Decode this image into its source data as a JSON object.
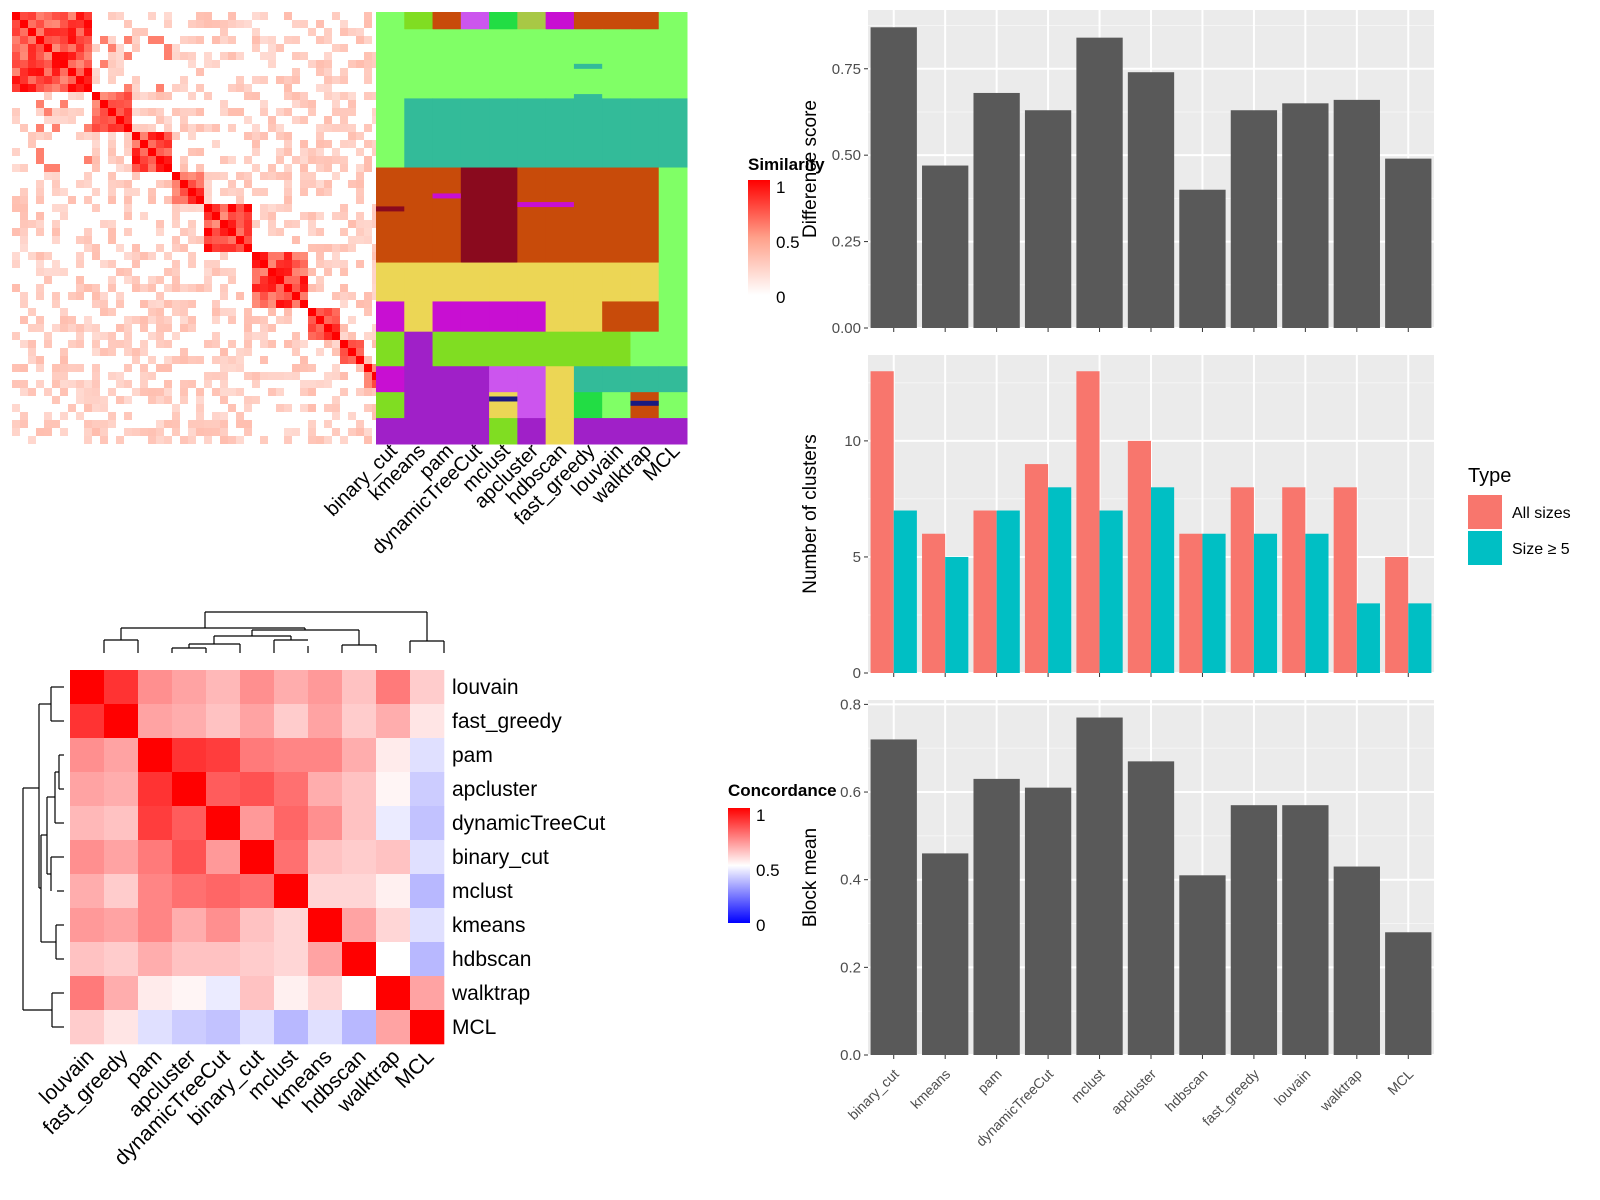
{
  "chart_data": [
    {
      "type": "heatmap",
      "id": "similarity-heatmap",
      "legend": {
        "title": "Similarity",
        "ticks": [
          "1",
          "0.5",
          "0"
        ]
      },
      "colors": {
        "high": "#ff0000",
        "low": "#ffffff"
      }
    },
    {
      "type": "heatmap",
      "id": "cluster-membership",
      "columns": [
        "binary_cut",
        "kmeans",
        "pam",
        "dynamicTreeCut",
        "mclust",
        "apcluster",
        "hdbscan",
        "fast_greedy",
        "louvain",
        "walktrap",
        "MCL"
      ]
    },
    {
      "type": "heatmap",
      "id": "concordance-heatmap",
      "rows": [
        "louvain",
        "fast_greedy",
        "pam",
        "apcluster",
        "dynamicTreeCut",
        "binary_cut",
        "mclust",
        "kmeans",
        "hdbscan",
        "walktrap",
        "MCL"
      ],
      "columns": [
        "louvain",
        "fast_greedy",
        "pam",
        "apcluster",
        "dynamicTreeCut",
        "binary_cut",
        "mclust",
        "kmeans",
        "hdbscan",
        "walktrap",
        "MCL"
      ],
      "values": [
        [
          1.0,
          0.9,
          0.72,
          0.68,
          0.64,
          0.72,
          0.66,
          0.7,
          0.62,
          0.76,
          0.6
        ],
        [
          0.9,
          1.0,
          0.68,
          0.66,
          0.62,
          0.68,
          0.6,
          0.68,
          0.6,
          0.66,
          0.55
        ],
        [
          0.72,
          0.68,
          1.0,
          0.9,
          0.88,
          0.76,
          0.74,
          0.74,
          0.66,
          0.54,
          0.44
        ],
        [
          0.68,
          0.66,
          0.9,
          1.0,
          0.82,
          0.84,
          0.78,
          0.66,
          0.62,
          0.52,
          0.4
        ],
        [
          0.64,
          0.62,
          0.88,
          0.82,
          1.0,
          0.7,
          0.8,
          0.72,
          0.62,
          0.46,
          0.38
        ],
        [
          0.72,
          0.68,
          0.76,
          0.84,
          0.7,
          1.0,
          0.78,
          0.62,
          0.6,
          0.62,
          0.44
        ],
        [
          0.66,
          0.6,
          0.74,
          0.78,
          0.8,
          0.78,
          1.0,
          0.58,
          0.58,
          0.53,
          0.36
        ],
        [
          0.7,
          0.68,
          0.74,
          0.66,
          0.72,
          0.62,
          0.58,
          1.0,
          0.68,
          0.58,
          0.44
        ],
        [
          0.62,
          0.6,
          0.66,
          0.62,
          0.62,
          0.6,
          0.58,
          0.68,
          1.0,
          0.5,
          0.36
        ],
        [
          0.76,
          0.66,
          0.54,
          0.52,
          0.46,
          0.62,
          0.53,
          0.58,
          0.5,
          1.0,
          0.68
        ],
        [
          0.6,
          0.55,
          0.44,
          0.4,
          0.38,
          0.44,
          0.36,
          0.44,
          0.36,
          0.68,
          1.0
        ]
      ],
      "legend": {
        "title": "Concordance",
        "ticks": [
          "1",
          "0.5",
          "0"
        ]
      },
      "colors": {
        "high": "#ff0000",
        "mid": "#ffffff",
        "low": "#0000ff"
      }
    },
    {
      "type": "bar",
      "id": "difference-score",
      "categories": [
        "binary_cut",
        "kmeans",
        "pam",
        "dynamicTreeCut",
        "mclust",
        "apcluster",
        "hdbscan",
        "fast_greedy",
        "louvain",
        "walktrap",
        "MCL"
      ],
      "values": [
        0.87,
        0.47,
        0.68,
        0.63,
        0.84,
        0.74,
        0.4,
        0.63,
        0.65,
        0.66,
        0.49
      ],
      "ylabel": "Difference score",
      "ylim": [
        0,
        0.92
      ],
      "yticks": [
        "0.00",
        "0.25",
        "0.50",
        "0.75"
      ],
      "color": "#595959"
    },
    {
      "type": "bar",
      "id": "number-of-clusters",
      "categories": [
        "binary_cut",
        "kmeans",
        "pam",
        "dynamicTreeCut",
        "mclust",
        "apcluster",
        "hdbscan",
        "fast_greedy",
        "louvain",
        "walktrap",
        "MCL"
      ],
      "series": [
        {
          "name": "All sizes",
          "values": [
            13,
            6,
            7,
            9,
            13,
            10,
            6,
            8,
            8,
            8,
            5
          ],
          "color": "#f8766d"
        },
        {
          "name": "Size ≥ 5",
          "values": [
            7,
            5,
            7,
            8,
            7,
            8,
            6,
            6,
            6,
            3,
            3
          ],
          "color": "#00bfc4"
        }
      ],
      "ylabel": "Number of clusters",
      "ylim": [
        0,
        13.7
      ],
      "yticks": [
        "0",
        "5",
        "10"
      ],
      "legend": {
        "title": "Type",
        "position": "right"
      }
    },
    {
      "type": "bar",
      "id": "block-mean",
      "categories": [
        "binary_cut",
        "kmeans",
        "pam",
        "dynamicTreeCut",
        "mclust",
        "apcluster",
        "hdbscan",
        "fast_greedy",
        "louvain",
        "walktrap",
        "MCL"
      ],
      "values": [
        0.72,
        0.46,
        0.63,
        0.61,
        0.77,
        0.67,
        0.41,
        0.57,
        0.57,
        0.43,
        0.28
      ],
      "ylabel": "Block mean",
      "ylim": [
        0,
        0.81
      ],
      "yticks": [
        "0.0",
        "0.2",
        "0.4",
        "0.6",
        "0.8"
      ],
      "color": "#595959"
    }
  ]
}
